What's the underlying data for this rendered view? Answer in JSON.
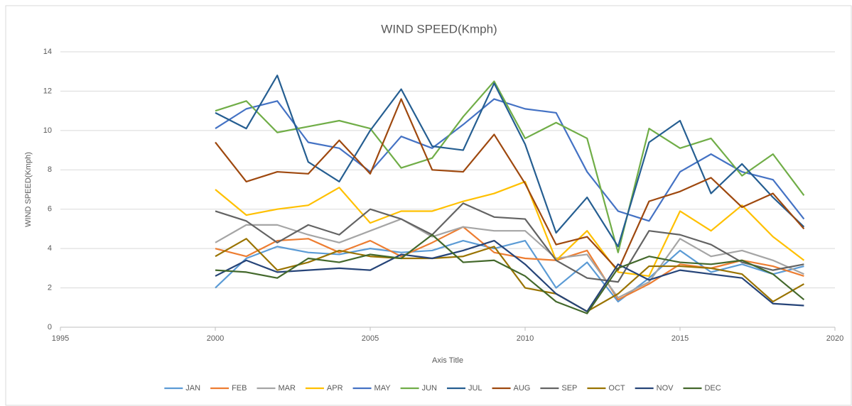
{
  "chart_data": {
    "type": "line",
    "title": "WIND SPEED(Kmph)",
    "x_label": "Axis Title",
    "y_label": "WIND SPEED(Kmph)",
    "x": [
      2000,
      2001,
      2002,
      2003,
      2004,
      2005,
      2006,
      2007,
      2008,
      2009,
      2010,
      2011,
      2012,
      2013,
      2014,
      2015,
      2016,
      2017,
      2018,
      2019
    ],
    "xlim": [
      1995,
      2020
    ],
    "xticks": [
      1995,
      2000,
      2005,
      2010,
      2015,
      2020
    ],
    "ylim": [
      0,
      14
    ],
    "yticks": [
      0,
      2,
      4,
      6,
      8,
      10,
      12,
      14
    ],
    "grid": true,
    "legend": "bottom",
    "series": [
      {
        "name": "JAN",
        "color": "#5b9bd5",
        "values": [
          2.0,
          3.5,
          4.1,
          3.8,
          3.7,
          4.0,
          3.8,
          3.9,
          4.4,
          4.0,
          4.4,
          2.0,
          3.3,
          1.3,
          2.5,
          3.9,
          2.8,
          3.2,
          2.7,
          3.1
        ]
      },
      {
        "name": "FEB",
        "color": "#ed7d31",
        "values": [
          4.0,
          3.6,
          4.4,
          4.5,
          3.8,
          4.4,
          3.6,
          4.3,
          5.1,
          3.8,
          3.5,
          3.4,
          3.9,
          1.4,
          2.2,
          3.2,
          3.0,
          3.4,
          3.1,
          2.6
        ]
      },
      {
        "name": "MAR",
        "color": "#a5a5a5",
        "values": [
          4.3,
          5.2,
          5.2,
          4.7,
          4.3,
          4.9,
          5.5,
          4.6,
          5.1,
          4.9,
          4.9,
          3.5,
          3.7,
          1.5,
          2.3,
          4.5,
          3.6,
          3.9,
          3.4,
          2.7
        ]
      },
      {
        "name": "APR",
        "color": "#ffc000",
        "values": [
          7.0,
          5.7,
          6.0,
          6.2,
          7.1,
          5.3,
          5.9,
          5.9,
          6.4,
          6.8,
          7.4,
          3.4,
          4.9,
          2.8,
          2.6,
          5.9,
          4.9,
          6.2,
          4.6,
          3.4
        ]
      },
      {
        "name": "MAY",
        "color": "#4472c4",
        "values": [
          10.1,
          11.1,
          11.5,
          9.4,
          9.1,
          7.9,
          9.7,
          9.1,
          10.3,
          11.6,
          11.1,
          10.9,
          7.9,
          5.9,
          5.4,
          7.9,
          8.8,
          7.9,
          7.5,
          5.5
        ]
      },
      {
        "name": "JUN",
        "color": "#70ad47",
        "values": [
          11.0,
          11.5,
          9.9,
          10.2,
          10.5,
          10.1,
          8.1,
          8.6,
          10.7,
          12.5,
          9.6,
          10.4,
          9.6,
          3.8,
          10.1,
          9.1,
          9.6,
          7.7,
          8.8,
          6.7
        ]
      },
      {
        "name": "JUL",
        "color": "#255e91",
        "values": [
          10.9,
          10.1,
          12.8,
          8.4,
          7.4,
          10.0,
          12.1,
          9.2,
          9.0,
          12.4,
          9.3,
          4.8,
          6.6,
          4.1,
          9.4,
          10.5,
          6.8,
          8.3,
          6.6,
          5.1
        ]
      },
      {
        "name": "AUG",
        "color": "#9e480e",
        "values": [
          9.4,
          7.4,
          7.9,
          7.8,
          9.5,
          7.8,
          11.6,
          8.0,
          7.9,
          9.8,
          7.3,
          4.2,
          4.6,
          2.9,
          6.4,
          6.9,
          7.6,
          6.1,
          6.8,
          5.0
        ]
      },
      {
        "name": "SEP",
        "color": "#636363",
        "values": [
          5.9,
          5.4,
          4.3,
          5.2,
          4.7,
          6.0,
          5.5,
          4.7,
          6.3,
          5.6,
          5.5,
          3.4,
          2.5,
          2.3,
          4.9,
          4.7,
          4.2,
          3.3,
          2.9,
          3.2
        ]
      },
      {
        "name": "OCT",
        "color": "#997300",
        "values": [
          3.6,
          4.5,
          2.9,
          3.3,
          3.9,
          3.6,
          3.5,
          3.5,
          3.6,
          4.1,
          2.0,
          1.7,
          0.8,
          1.7,
          3.1,
          3.1,
          3.0,
          2.7,
          1.3,
          2.2
        ]
      },
      {
        "name": "NOV",
        "color": "#264478",
        "values": [
          2.6,
          3.4,
          2.8,
          2.9,
          3.0,
          2.9,
          3.7,
          3.5,
          3.9,
          4.4,
          3.2,
          1.7,
          0.8,
          3.2,
          2.4,
          2.9,
          2.7,
          2.5,
          1.2,
          1.1
        ]
      },
      {
        "name": "DEC",
        "color": "#43682b",
        "values": [
          2.9,
          2.8,
          2.5,
          3.5,
          3.3,
          3.7,
          3.5,
          4.7,
          3.3,
          3.4,
          2.6,
          1.3,
          0.7,
          3.0,
          3.6,
          3.3,
          3.2,
          3.4,
          2.7,
          1.4
        ]
      }
    ]
  }
}
